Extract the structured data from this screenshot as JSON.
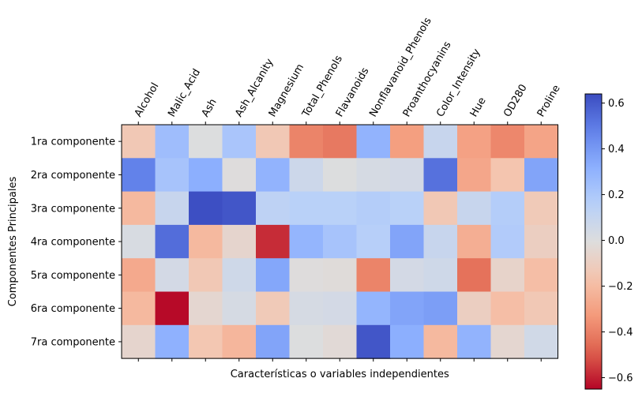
{
  "chart_data": {
    "type": "heatmap",
    "colormap": "coolwarm",
    "xlabel": "Características o variables independientes",
    "ylabel": "Componentes Principales",
    "x_categories": [
      "Alcohol",
      "Malic_Acid",
      "Ash",
      "Ash_Alcanity",
      "Magnesium",
      "Total_Phenols",
      "Flavanoids",
      "Nonflavanoid_Phenols",
      "Proanthocyanins",
      "Color_Intensity",
      "Hue",
      "OD280",
      "Proline"
    ],
    "y_categories": [
      "1ra componente",
      "2ra componente",
      "3ra componente",
      "4ra componente",
      "5ra componente",
      "6ra componente",
      "7ra componente"
    ],
    "values": [
      [
        -0.14,
        0.25,
        0.0,
        0.21,
        -0.14,
        -0.39,
        -0.42,
        0.3,
        -0.31,
        0.09,
        -0.3,
        -0.38,
        -0.29
      ],
      [
        0.48,
        0.22,
        0.32,
        -0.01,
        0.3,
        0.07,
        -0.0,
        0.03,
        0.04,
        0.53,
        -0.28,
        -0.16,
        0.36
      ],
      [
        -0.21,
        0.09,
        0.63,
        0.61,
        0.13,
        0.15,
        0.15,
        0.17,
        0.15,
        -0.14,
        0.09,
        0.17,
        -0.13
      ],
      [
        0.02,
        0.54,
        -0.21,
        -0.06,
        -0.58,
        0.29,
        0.22,
        0.16,
        0.36,
        0.09,
        -0.25,
        0.18,
        -0.1
      ],
      [
        -0.27,
        0.04,
        -0.14,
        0.06,
        0.35,
        -0.01,
        -0.02,
        -0.39,
        0.04,
        0.06,
        -0.44,
        -0.07,
        -0.19
      ],
      [
        -0.21,
        -0.64,
        -0.05,
        0.03,
        -0.13,
        0.03,
        0.04,
        0.29,
        0.36,
        0.38,
        -0.1,
        -0.19,
        -0.14
      ],
      [
        -0.06,
        0.31,
        -0.15,
        -0.22,
        0.36,
        0.0,
        -0.03,
        0.61,
        0.32,
        -0.21,
        0.3,
        -0.05,
        0.05
      ]
    ],
    "vmin": -0.65,
    "vmax": 0.64,
    "colorbar_ticks": [
      0.6,
      0.4,
      0.2,
      0.0,
      -0.2,
      -0.4,
      -0.6
    ],
    "colorbar_tick_labels": [
      "0.6",
      "0.4",
      "0.2",
      "0.0",
      "−0.2",
      "−0.4",
      "−0.6"
    ],
    "grid": false
  }
}
